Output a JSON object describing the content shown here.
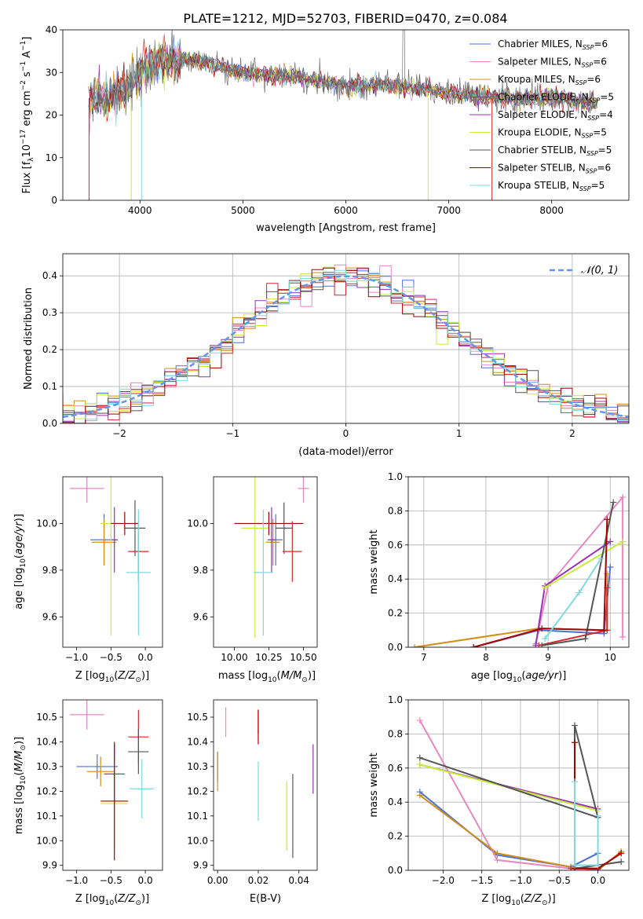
{
  "figure_title": "PLATE=1212, MJD=52703, FIBERID=0470, z=0.084",
  "colors": {
    "Chabrier MILES": "#4c72d8",
    "Salpeter MILES": "#e887c0",
    "Kroupa MILES": "#d08d1c",
    "Chabrier ELODIE": "#d62728",
    "Salpeter ELODIE": "#9b2fb5",
    "Kroupa ELODIE": "#c8ec3a",
    "Chabrier STELIB": "#555555",
    "Salpeter STELIB": "#a40000",
    "Kroupa STELIB": "#7fd9df",
    "gauss": "#6495ed"
  },
  "chart_data": [
    {
      "id": "spectrum",
      "type": "line",
      "xlabel": "wavelength [Angstrom, rest frame]",
      "ylabel_main": "Flux [f",
      "ylabel_sub": "λ",
      "ylabel_rest": "10",
      "ylabel_exp": "−17",
      "ylabel_tail": " erg cm",
      "xlim": [
        3250,
        8750
      ],
      "ylim": [
        0,
        40
      ],
      "xticks": [
        4000,
        5000,
        6000,
        7000,
        8000
      ],
      "yticks": [
        0,
        10,
        20,
        30,
        40
      ],
      "legend_loc": "upper right",
      "legend": [
        {
          "library": "Chabrier MILES",
          "n": "6"
        },
        {
          "library": "Salpeter MILES",
          "n": "6"
        },
        {
          "library": "Kroupa MILES",
          "n": "6"
        },
        {
          "library": "Chabrier ELODIE",
          "n": "5"
        },
        {
          "library": "Salpeter ELODIE",
          "n": "4"
        },
        {
          "library": "Kroupa ELODIE",
          "n": "5"
        },
        {
          "library": "Chabrier STELIB",
          "n": "5"
        },
        {
          "library": "Salpeter STELIB",
          "n": "6"
        },
        {
          "library": "Kroupa STELIB",
          "n": "5"
        }
      ],
      "continuum": {
        "x": [
          3500,
          3700,
          3950,
          4000,
          4200,
          4500,
          5000,
          5500,
          6000,
          6500,
          6800,
          7000,
          7500,
          8000,
          8400
        ],
        "y": [
          24,
          24,
          28,
          30,
          33,
          33,
          30,
          29,
          27,
          27,
          26,
          25,
          24,
          24,
          23
        ]
      }
    },
    {
      "id": "residuals",
      "type": "histogram",
      "xlabel": "(data-model)/error",
      "ylabel": "Normed distribution",
      "xlim": [
        -2.5,
        2.5
      ],
      "ylim": [
        0,
        0.46
      ],
      "xticks": [
        -2,
        -1,
        0,
        1,
        2
      ],
      "yticks": [
        0.0,
        0.1,
        0.2,
        0.3,
        0.4
      ],
      "grid": true,
      "legend": "𝒩(0, 1)",
      "legend_loc": "upper right",
      "bin_width": 0.1
    },
    {
      "id": "age_vs_Z",
      "type": "errorbar",
      "xlabel": "Z [log10(Z/Z☉)]",
      "ylabel": "age  [log10(age/yr)]",
      "xlim": [
        -1.2,
        0.25
      ],
      "ylim": [
        9.47,
        10.2
      ],
      "xticks": [
        -1.0,
        -0.5,
        0.0
      ],
      "yticks": [
        9.6,
        9.8,
        10.0
      ],
      "points": [
        {
          "s": "Chabrier MILES",
          "x": -0.6,
          "y": 9.93,
          "xerr": 0.2,
          "yerr": 0.11
        },
        {
          "s": "Salpeter MILES",
          "x": -0.85,
          "y": 10.15,
          "xerr": 0.25,
          "yerr": 0.06
        },
        {
          "s": "Kroupa MILES",
          "x": -0.6,
          "y": 9.92,
          "xerr": 0.18,
          "yerr": 0.1
        },
        {
          "s": "Chabrier ELODIE",
          "x": -0.1,
          "y": 9.88,
          "xerr": 0.15,
          "yerr": 0.13
        },
        {
          "s": "Salpeter ELODIE",
          "x": -0.45,
          "y": 9.93,
          "xerr": 0.05,
          "yerr": 0.14
        },
        {
          "s": "Kroupa ELODIE",
          "x": -0.5,
          "y": 10.0,
          "xerr": 0.15,
          "yerr": 0.48
        },
        {
          "s": "Chabrier STELIB",
          "x": -0.15,
          "y": 9.98,
          "xerr": 0.15,
          "yerr": 0.12
        },
        {
          "s": "Salpeter STELIB",
          "x": -0.3,
          "y": 10.0,
          "xerr": 0.2,
          "yerr": 0.05
        },
        {
          "s": "Kroupa STELIB",
          "x": -0.1,
          "y": 9.79,
          "xerr": 0.18,
          "yerr": 0.27
        }
      ]
    },
    {
      "id": "age_vs_mass",
      "type": "errorbar",
      "xlabel": "mass [log10(M/M☉)]",
      "xlim": [
        9.85,
        10.6
      ],
      "ylim": [
        9.47,
        10.2
      ],
      "xticks": [
        10.0,
        10.25,
        10.5
      ],
      "yticks": [
        9.6,
        9.8,
        10.0
      ],
      "points": [
        {
          "s": "Chabrier MILES",
          "x": 10.3,
          "y": 9.93,
          "xerr": 0.05,
          "yerr": 0.11
        },
        {
          "s": "Salpeter MILES",
          "x": 10.5,
          "y": 10.15,
          "xerr": 0.04,
          "yerr": 0.06
        },
        {
          "s": "Kroupa MILES",
          "x": 10.28,
          "y": 9.92,
          "xerr": 0.05,
          "yerr": 0.1
        },
        {
          "s": "Chabrier ELODIE",
          "x": 10.42,
          "y": 9.88,
          "xerr": 0.07,
          "yerr": 0.13
        },
        {
          "s": "Salpeter ELODIE",
          "x": 10.27,
          "y": 9.93,
          "xerr": 0.03,
          "yerr": 0.14
        },
        {
          "s": "Kroupa ELODIE",
          "x": 10.15,
          "y": 9.98,
          "xerr": 0.1,
          "yerr": 0.47
        },
        {
          "s": "Chabrier STELIB",
          "x": 10.36,
          "y": 9.98,
          "xerr": 0.06,
          "yerr": 0.11
        },
        {
          "s": "Salpeter STELIB",
          "x": 10.25,
          "y": 10.0,
          "xerr": 0.25,
          "yerr": 0.05
        },
        {
          "s": "Kroupa STELIB",
          "x": 10.21,
          "y": 9.79,
          "xerr": 0.07,
          "yerr": 0.27
        }
      ]
    },
    {
      "id": "weight_vs_age",
      "type": "line",
      "xlabel": "age  [log10(age/yr)]",
      "ylabel": "mass weight",
      "xlim": [
        6.75,
        10.3
      ],
      "ylim": [
        0,
        1
      ],
      "xticks": [
        7,
        8,
        9,
        10
      ],
      "yticks": [
        0.0,
        0.2,
        0.4,
        0.6,
        0.8,
        1.0
      ],
      "grid": true,
      "series": [
        {
          "s": "Chabrier MILES",
          "x": [
            7.8,
            8.85,
            9.9,
            10.0
          ],
          "y": [
            0.0,
            0.1,
            0.08,
            0.47
          ]
        },
        {
          "s": "Salpeter MILES",
          "x": [
            8.8,
            9.0,
            10.2,
            10.2
          ],
          "y": [
            0.02,
            0.36,
            0.88,
            0.06
          ]
        },
        {
          "s": "Kroupa MILES",
          "x": [
            6.85,
            8.85,
            9.95,
            9.95
          ],
          "y": [
            0.0,
            0.11,
            0.1,
            0.43
          ]
        },
        {
          "s": "Chabrier ELODIE",
          "x": [
            8.85,
            9.95,
            9.95
          ],
          "y": [
            0.01,
            0.1,
            0.35
          ]
        },
        {
          "s": "Salpeter ELODIE",
          "x": [
            8.8,
            8.95,
            10.0
          ],
          "y": [
            0.01,
            0.36,
            0.62
          ]
        },
        {
          "s": "Kroupa ELODIE",
          "x": [
            8.95,
            10.2
          ],
          "y": [
            0.35,
            0.62
          ]
        },
        {
          "s": "Chabrier STELIB",
          "x": [
            8.9,
            9.6,
            10.05
          ],
          "y": [
            0.01,
            0.05,
            0.85
          ]
        },
        {
          "s": "Salpeter STELIB",
          "x": [
            7.8,
            8.9,
            9.9,
            9.95
          ],
          "y": [
            0.0,
            0.11,
            0.1,
            0.75
          ]
        },
        {
          "s": "Kroupa STELIB",
          "x": [
            8.95,
            9.5,
            9.85
          ],
          "y": [
            0.05,
            0.32,
            0.52
          ]
        }
      ]
    },
    {
      "id": "mass_vs_Z",
      "type": "errorbar",
      "xlabel": "Z [log10(Z/Z☉)]",
      "ylabel": "mass [log10(M/M☉)]",
      "xlim": [
        -1.2,
        0.25
      ],
      "ylim": [
        9.88,
        10.57
      ],
      "xticks": [
        -1.0,
        -0.5,
        0.0
      ],
      "yticks": [
        9.9,
        10.0,
        10.1,
        10.2,
        10.3,
        10.4,
        10.5
      ],
      "points": [
        {
          "s": "Chabrier MILES",
          "x": -0.7,
          "y": 10.3,
          "xerr": 0.3,
          "yerr": 0.05
        },
        {
          "s": "Salpeter MILES",
          "x": -0.85,
          "y": 10.51,
          "xerr": 0.25,
          "yerr": 0.06
        },
        {
          "s": "Kroupa MILES",
          "x": -0.65,
          "y": 10.28,
          "xerr": 0.2,
          "yerr": 0.06
        },
        {
          "s": "Chabrier ELODIE",
          "x": -0.1,
          "y": 10.42,
          "xerr": 0.15,
          "yerr": 0.11
        },
        {
          "s": "Salpeter ELODIE",
          "x": -0.45,
          "y": 10.27,
          "xerr": 0.15,
          "yerr": 0.12
        },
        {
          "s": "Kroupa ELODIE",
          "x": -0.45,
          "y": 10.15,
          "xerr": 0.2,
          "yerr": 0.19
        },
        {
          "s": "Chabrier STELIB",
          "x": -0.1,
          "y": 10.36,
          "xerr": 0.15,
          "yerr": 0.09
        },
        {
          "s": "Salpeter STELIB",
          "x": -0.45,
          "y": 10.16,
          "xerr": 0.2,
          "yerr": 0.24
        },
        {
          "s": "Kroupa STELIB",
          "x": -0.05,
          "y": 10.21,
          "xerr": 0.18,
          "yerr": 0.12
        }
      ]
    },
    {
      "id": "mass_vs_EBV",
      "type": "errorbar",
      "xlabel": "E(B-V)",
      "xlim": [
        -0.002,
        0.049
      ],
      "ylim": [
        9.88,
        10.57
      ],
      "xticks": [
        0.0,
        0.02,
        0.04
      ],
      "yticks": [
        9.9,
        10.0,
        10.1,
        10.2,
        10.3,
        10.4,
        10.5
      ],
      "points": [
        {
          "s": "Chabrier MILES",
          "x": 0.0,
          "y": 10.3,
          "xerr": 0,
          "yerr": 0.06
        },
        {
          "s": "Salpeter MILES",
          "x": 0.004,
          "y": 10.48,
          "xerr": 0,
          "yerr": 0.06
        },
        {
          "s": "Kroupa MILES",
          "x": 0.0,
          "y": 10.28,
          "xerr": 0,
          "yerr": 0.08
        },
        {
          "s": "Chabrier ELODIE",
          "x": 0.02,
          "y": 10.48,
          "xerr": 0,
          "yerr": 0.05
        },
        {
          "s": "Salpeter ELODIE",
          "x": 0.047,
          "y": 10.29,
          "xerr": 0,
          "yerr": 0.1
        },
        {
          "s": "Kroupa ELODIE",
          "x": 0.034,
          "y": 10.1,
          "xerr": 0,
          "yerr": 0.14
        },
        {
          "s": "Chabrier STELIB",
          "x": 0.037,
          "y": 10.1,
          "xerr": 0,
          "yerr": 0.17
        },
        {
          "s": "Salpeter STELIB",
          "x": 0.02,
          "y": 10.46,
          "xerr": 0,
          "yerr": 0.07
        },
        {
          "s": "Kroupa STELIB",
          "x": 0.02,
          "y": 10.2,
          "xerr": 0,
          "yerr": 0.12
        }
      ]
    },
    {
      "id": "weight_vs_Z",
      "type": "line",
      "xlabel": "Z [log10(Z/Z☉)]",
      "ylabel": "mass weight",
      "xlim": [
        -2.45,
        0.4
      ],
      "ylim": [
        0,
        1
      ],
      "xticks": [
        -2.0,
        -1.5,
        -1.0,
        -0.5,
        0.0
      ],
      "yticks": [
        0.0,
        0.2,
        0.4,
        0.6,
        0.8,
        1.0
      ],
      "grid": true,
      "series": [
        {
          "s": "Chabrier MILES",
          "x": [
            -2.3,
            -1.3,
            -0.35,
            0.0
          ],
          "y": [
            0.46,
            0.09,
            0.02,
            0.1
          ]
        },
        {
          "s": "Salpeter MILES",
          "x": [
            -2.3,
            -1.3,
            -0.35,
            0.0
          ],
          "y": [
            0.88,
            0.06,
            0.01,
            0.01
          ]
        },
        {
          "s": "Kroupa MILES",
          "x": [
            -2.3,
            -1.3,
            -0.35,
            0.0,
            0.3
          ],
          "y": [
            0.44,
            0.1,
            0.02,
            0.0,
            0.11
          ]
        },
        {
          "s": "Chabrier ELODIE",
          "x": [
            -0.35,
            0.0,
            0.3
          ],
          "y": [
            0.01,
            0.01,
            0.1
          ]
        },
        {
          "s": "Salpeter ELODIE",
          "x": [
            -2.3,
            0.0
          ],
          "y": [
            0.62,
            0.36
          ]
        },
        {
          "s": "Kroupa ELODIE",
          "x": [
            -2.3,
            0.0
          ],
          "y": [
            0.62,
            0.35
          ]
        },
        {
          "s": "Chabrier STELIB",
          "x": [
            -2.3,
            0.0,
            -0.3,
            -0.3,
            0.3
          ],
          "y": [
            0.66,
            0.31,
            0.85,
            0.01,
            0.05
          ]
        },
        {
          "s": "Salpeter STELIB",
          "x": [
            -0.3,
            -0.3,
            0.0,
            0.3
          ],
          "y": [
            0.75,
            0.01,
            0.01,
            0.1
          ]
        },
        {
          "s": "Kroupa STELIB",
          "x": [
            -0.3,
            -0.3,
            0.0,
            0.0
          ],
          "y": [
            0.52,
            0.03,
            0.03,
            0.32
          ]
        }
      ]
    }
  ]
}
